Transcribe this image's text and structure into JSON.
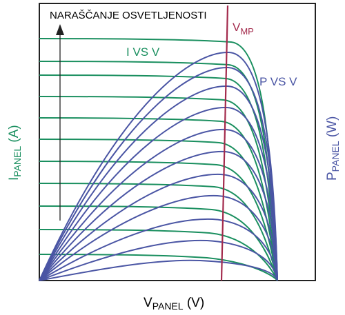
{
  "diagram": {
    "annotation": "NARAŠČANJE OSVETLJENOSTI",
    "vmp": {
      "base": "V",
      "sub": "MP"
    },
    "curve_labels": {
      "iv": "I VS V",
      "pv": "P VS V"
    },
    "x_axis": {
      "base": "V",
      "sub": "PANEL",
      "unit": " (V)"
    },
    "y_left": {
      "base": "I",
      "sub": "PANEL",
      "unit": " (A)"
    },
    "y_right": {
      "base": "P",
      "sub": "PANEL",
      "unit": " (W)"
    }
  },
  "colors": {
    "iv_curve": "#1a8f5f",
    "pv_curve": "#4a55a4",
    "vmp_line": "#a32a4c",
    "frame": "#222222",
    "text": "#000000"
  },
  "curve_counts": {
    "iv": 11,
    "pv": 11
  }
}
